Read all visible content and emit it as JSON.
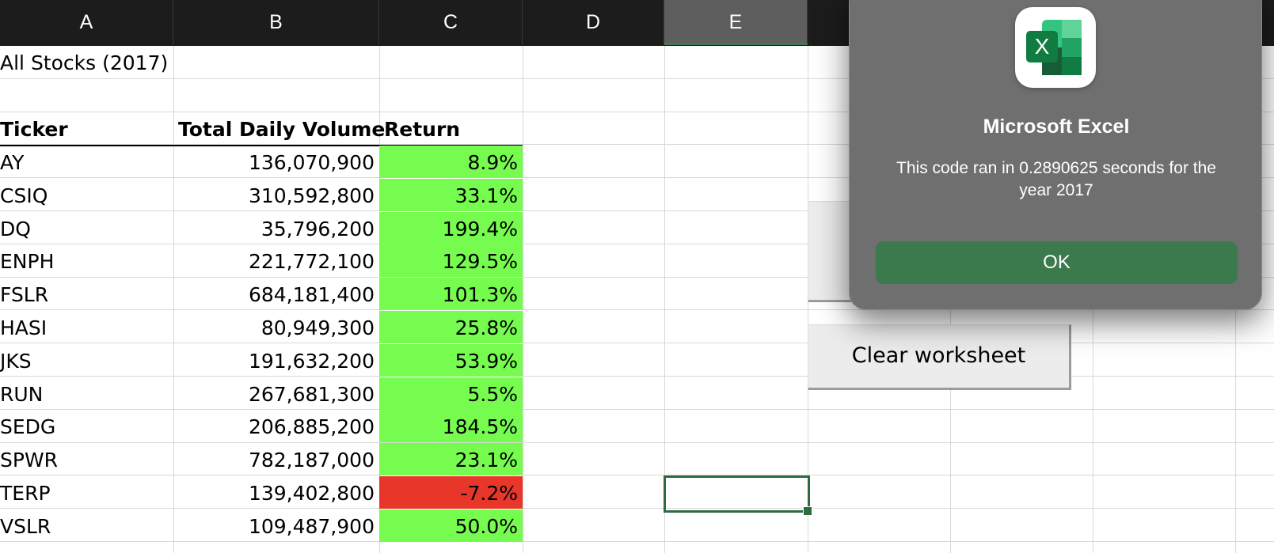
{
  "columns": [
    "A",
    "B",
    "C",
    "D",
    "E"
  ],
  "sheet": {
    "title": "All Stocks (2017)",
    "headers": {
      "ticker": "Ticker",
      "volume": "Total Daily Volume",
      "return": "Return"
    },
    "rows": [
      {
        "ticker": "AY",
        "volume": "136,070,900",
        "return": "8.9%",
        "status": "positive"
      },
      {
        "ticker": "CSIQ",
        "volume": "310,592,800",
        "return": "33.1%",
        "status": "positive"
      },
      {
        "ticker": "DQ",
        "volume": "35,796,200",
        "return": "199.4%",
        "status": "positive"
      },
      {
        "ticker": "ENPH",
        "volume": "221,772,100",
        "return": "129.5%",
        "status": "positive"
      },
      {
        "ticker": "FSLR",
        "volume": "684,181,400",
        "return": "101.3%",
        "status": "positive"
      },
      {
        "ticker": "HASI",
        "volume": "80,949,300",
        "return": "25.8%",
        "status": "positive"
      },
      {
        "ticker": "JKS",
        "volume": "191,632,200",
        "return": "53.9%",
        "status": "positive"
      },
      {
        "ticker": "RUN",
        "volume": "267,681,300",
        "return": "5.5%",
        "status": "positive"
      },
      {
        "ticker": "SEDG",
        "volume": "206,885,200",
        "return": "184.5%",
        "status": "positive"
      },
      {
        "ticker": "SPWR",
        "volume": "782,187,000",
        "return": "23.1%",
        "status": "positive"
      },
      {
        "ticker": "TERP",
        "volume": "139,402,800",
        "return": "-7.2%",
        "status": "negative"
      },
      {
        "ticker": "VSLR",
        "volume": "109,487,900",
        "return": "50.0%",
        "status": "positive"
      }
    ]
  },
  "buttons": {
    "clear_label": "Clear worksheet"
  },
  "dialog": {
    "app_name": "Microsoft Excel",
    "icon_letter": "X",
    "message": "This code ran in 0.2890625 seconds for the year 2017",
    "ok_label": "OK"
  },
  "colors": {
    "positive": "#76fb4f",
    "negative": "#e8362a",
    "excel_green": "#3a7a4c",
    "header_bar": "#1c1c1c"
  }
}
